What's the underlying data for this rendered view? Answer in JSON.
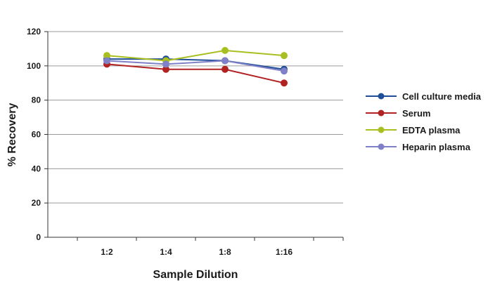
{
  "chart_data": {
    "type": "line",
    "title": "",
    "xlabel": "Sample Dilution",
    "ylabel": "% Recovery",
    "categories": [
      "1:2",
      "1:4",
      "1:8",
      "1:16"
    ],
    "ylim": [
      0,
      120
    ],
    "yticks": [
      0,
      20,
      40,
      60,
      80,
      100,
      120
    ],
    "grid": true,
    "legend": "right",
    "series": [
      {
        "name": "Cell culture media",
        "color": "#1f4e99",
        "values": [
          104,
          104,
          103,
          98
        ]
      },
      {
        "name": "Serum",
        "color": "#b22222",
        "values": [
          101,
          98,
          98,
          90
        ]
      },
      {
        "name": "EDTA plasma",
        "color": "#a8bf1f",
        "values": [
          106,
          103,
          109,
          106
        ]
      },
      {
        "name": "Heparin plasma",
        "color": "#8080c8",
        "values": [
          103,
          101,
          103,
          97
        ]
      }
    ]
  }
}
